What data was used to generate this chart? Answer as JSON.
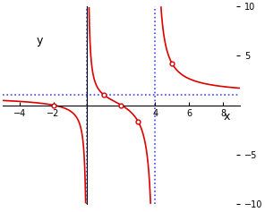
{
  "xlim": [
    -5,
    9
  ],
  "ylim": [
    -10,
    10
  ],
  "xticks": [
    -4,
    -2,
    4,
    6,
    8
  ],
  "yticks": [
    -10,
    -5,
    5,
    10
  ],
  "xlabel": "x",
  "ylabel": "y",
  "vline1": 0,
  "vline2": 4,
  "hline": 1,
  "special_points": [
    [
      2,
      0
    ],
    [
      1,
      1
    ],
    [
      -2,
      0
    ],
    [
      3,
      -1.6667
    ],
    [
      5,
      4.2
    ]
  ],
  "bg_color": "#ffffff",
  "curve_color": "#dd0000",
  "asymptote_color": "#4444ff",
  "axis_color": "#000000",
  "figsize": [
    2.96,
    2.37
  ],
  "dpi": 100
}
